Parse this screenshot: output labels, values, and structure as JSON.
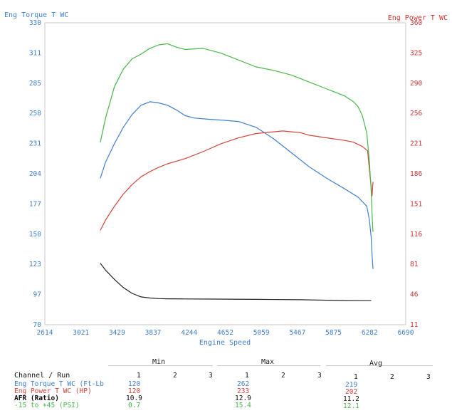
{
  "chart_data": {
    "type": "line",
    "left_axis_title": "Eng Torque T WC",
    "right_axis_title": "Eng Power T WC",
    "xlabel": "Engine Speed",
    "x_ticks": [
      "2614",
      "3021",
      "3429",
      "3837",
      "4244",
      "4652",
      "5059",
      "5467",
      "5875",
      "6282",
      "6690"
    ],
    "y_left_ticks": [
      "330",
      "311",
      "285",
      "258",
      "231",
      "204",
      "177",
      "150",
      "123",
      "97",
      "70"
    ],
    "y_right_ticks": [
      "360",
      "325",
      "290",
      "256",
      "221",
      "186",
      "151",
      "116",
      "81",
      "46",
      "11"
    ],
    "xlim": [
      2614,
      6690
    ],
    "ylim_left": [
      70,
      330
    ],
    "ylim_right": [
      11,
      360
    ],
    "grid": false,
    "colors": {
      "torque": "#3f7fd0",
      "power": "#d2453a",
      "afr": "#222222",
      "boost": "#49b849",
      "left_axis": "#3f7fd0",
      "right_axis": "#cc3333"
    },
    "series": [
      {
        "name": "Eng Torque T WC (Ft-Lb)",
        "axis": "left",
        "color": "#3f7fd0",
        "x": [
          3240,
          3300,
          3400,
          3500,
          3600,
          3700,
          3800,
          3900,
          4000,
          4100,
          4200,
          4300,
          4450,
          4650,
          4800,
          5000,
          5200,
          5400,
          5600,
          5800,
          6000,
          6150,
          6250,
          6280,
          6300,
          6310,
          6320
        ],
        "y": [
          196,
          210,
          226,
          240,
          251,
          259,
          262,
          261,
          259,
          255,
          250,
          248,
          247,
          246,
          245,
          240,
          230,
          218,
          206,
          196,
          187,
          180,
          172,
          160,
          145,
          130,
          118
        ]
      },
      {
        "name": "Eng Power T WC (HP)",
        "axis": "right",
        "color": "#d2453a",
        "x": [
          3240,
          3300,
          3400,
          3500,
          3600,
          3700,
          3800,
          3900,
          4000,
          4200,
          4400,
          4600,
          4800,
          5000,
          5200,
          5300,
          5400,
          5500,
          5600,
          5800,
          6000,
          6100,
          6200,
          6260,
          6280,
          6300,
          6310,
          6320
        ],
        "y": [
          120,
          132,
          148,
          162,
          173,
          182,
          188,
          193,
          197,
          203,
          211,
          220,
          227,
          232,
          234,
          235,
          234,
          233,
          230,
          227,
          224,
          222,
          217,
          212,
          190,
          170,
          160,
          176
        ]
      },
      {
        "name": "AFR (Ratio)",
        "axis": "left",
        "color": "#222222",
        "x": [
          3240,
          3300,
          3400,
          3500,
          3600,
          3700,
          3800,
          3900,
          4000,
          4200,
          4500,
          5000,
          5500,
          6000,
          6300
        ],
        "y": [
          123,
          117,
          109,
          102,
          97,
          94,
          93,
          92.5,
          92.3,
          92.2,
          92.1,
          91.8,
          91.5,
          90.8,
          90.7
        ]
      },
      {
        "name": "-15 to +45 (PSI)",
        "axis": "left",
        "color": "#49b849",
        "x": [
          3240,
          3300,
          3400,
          3500,
          3600,
          3700,
          3800,
          3900,
          4000,
          4100,
          4200,
          4400,
          4600,
          4800,
          5000,
          5200,
          5400,
          5600,
          5800,
          6000,
          6100,
          6150,
          6200,
          6250,
          6280,
          6300,
          6310,
          6320
        ],
        "y": [
          227,
          248,
          275,
          290,
          299,
          303,
          308,
          311,
          312,
          309,
          307,
          308,
          304,
          298,
          292,
          289,
          285,
          279,
          273,
          267,
          262,
          258,
          250,
          235,
          210,
          185,
          165,
          150
        ]
      }
    ]
  },
  "stats": {
    "col_headers": [
      "Min",
      "Max",
      "Avg"
    ],
    "run_label": "Channel / Run",
    "run_numbers": [
      "1",
      "2",
      "3"
    ],
    "rows": [
      {
        "label": "Eng Torque T WC (Ft-Lb",
        "color": "#3f7fd0",
        "min": "120",
        "max": "262",
        "avg": "219"
      },
      {
        "label": "Eng Power T WC (HP)",
        "color": "#d2453a",
        "min": "120",
        "max": "233",
        "avg": "202"
      },
      {
        "label": "AFR (Ratio)",
        "color": "#111111",
        "min": "10.9",
        "max": "12.9",
        "avg": "11.2"
      },
      {
        "label": "-15 to +45 (PSI)",
        "color": "#49b849",
        "min": "0.7",
        "max": "15.4",
        "avg": "12.1"
      }
    ]
  }
}
